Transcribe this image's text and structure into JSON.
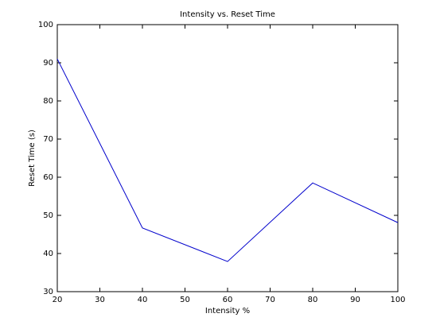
{
  "chart_data": {
    "type": "line",
    "title": "Intensity vs. Reset Time",
    "x_label": "Intensity %",
    "y_label": "Reset Time (s)",
    "x": [
      20,
      40,
      60,
      80,
      100
    ],
    "series": [
      {
        "color": "#0000cc",
        "values": [
          91,
          46.7,
          37.9,
          58.5,
          48.1
        ]
      }
    ],
    "xlim": [
      20,
      100
    ],
    "xticks": [
      20,
      30,
      40,
      50,
      60,
      70,
      80,
      90,
      100
    ],
    "ylim": [
      30,
      100
    ],
    "yticks": [
      30,
      40,
      50,
      60,
      70,
      80,
      90,
      100
    ],
    "grid": false
  }
}
